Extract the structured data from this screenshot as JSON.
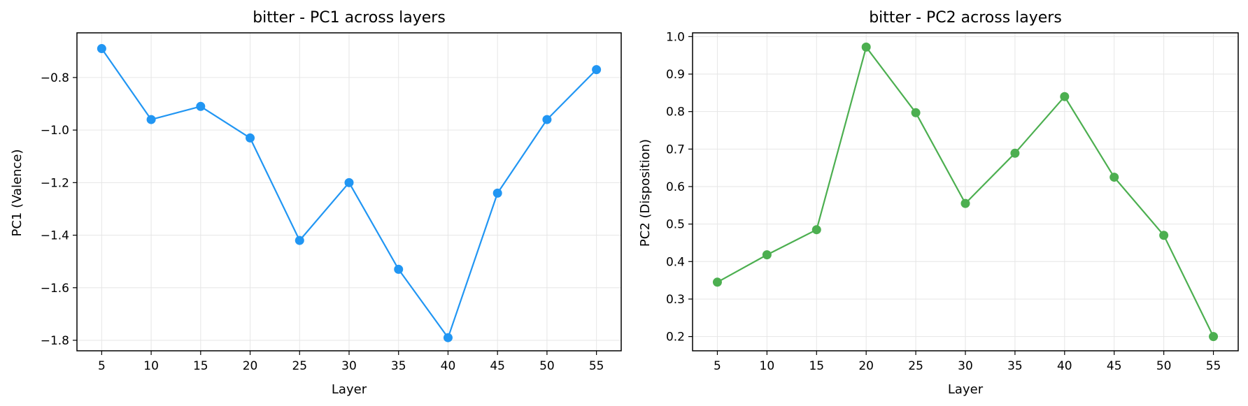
{
  "chart_data": [
    {
      "type": "line",
      "title": "bitter - PC1 across layers",
      "xlabel": "Layer",
      "ylabel": "PC1 (Valence)",
      "color": "#2196F3",
      "x": [
        5,
        10,
        15,
        20,
        25,
        30,
        35,
        40,
        45,
        50,
        55
      ],
      "values": [
        -0.69,
        -0.96,
        -0.91,
        -1.03,
        -1.42,
        -1.2,
        -1.53,
        -1.79,
        -1.24,
        -0.96,
        -0.77
      ],
      "xticks": [
        5,
        10,
        15,
        20,
        25,
        30,
        35,
        40,
        45,
        50,
        55
      ],
      "yticks": [
        -0.8,
        -1.0,
        -1.2,
        -1.4,
        -1.6,
        -1.8
      ],
      "ytick_labels": [
        "−0.8",
        "−1.0",
        "−1.2",
        "−1.4",
        "−1.6",
        "−1.8"
      ],
      "xlim": [
        2.5,
        57.5
      ],
      "ylim": [
        -1.84,
        -0.63
      ],
      "grid": true
    },
    {
      "type": "line",
      "title": "bitter - PC2 across layers",
      "xlabel": "Layer",
      "ylabel": "PC2 (Disposition)",
      "color": "#4CAF50",
      "x": [
        5,
        10,
        15,
        20,
        25,
        30,
        35,
        40,
        45,
        50,
        55
      ],
      "values": [
        0.345,
        0.418,
        0.485,
        0.972,
        0.797,
        0.555,
        0.689,
        0.84,
        0.625,
        0.47,
        0.2
      ],
      "xticks": [
        5,
        10,
        15,
        20,
        25,
        30,
        35,
        40,
        45,
        50,
        55
      ],
      "yticks": [
        0.2,
        0.3,
        0.4,
        0.5,
        0.6,
        0.7,
        0.8,
        0.9,
        1.0
      ],
      "ytick_labels": [
        "0.2",
        "0.3",
        "0.4",
        "0.5",
        "0.6",
        "0.7",
        "0.8",
        "0.9",
        "1.0"
      ],
      "xlim": [
        2.5,
        57.5
      ],
      "ylim": [
        0.162,
        1.01
      ],
      "grid": true
    }
  ]
}
